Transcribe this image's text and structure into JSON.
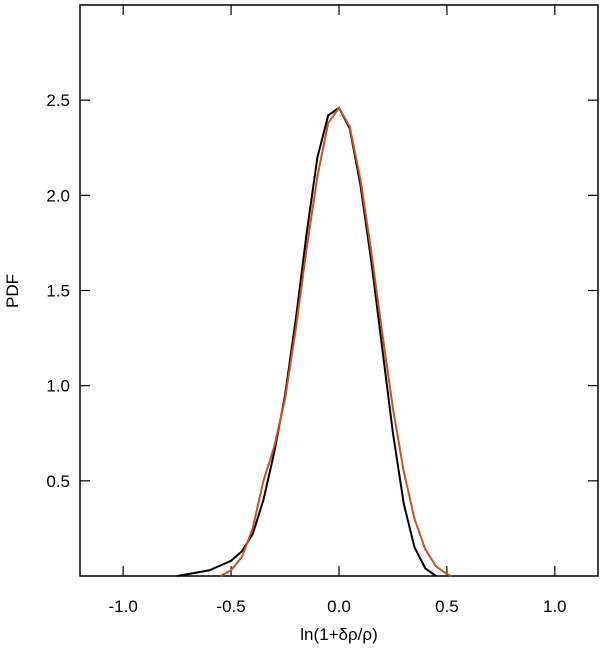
{
  "chart_data": {
    "type": "line",
    "x_label": "ln(1+δρ/ρ)",
    "y_label": "PDF",
    "xlim": [
      -1.2,
      1.2
    ],
    "ylim": [
      0,
      3
    ],
    "xticks": [
      {
        "value": -1.0,
        "label": "-1.0"
      },
      -0.5,
      {
        "value": 0.0,
        "label": "0.0"
      },
      0.5,
      {
        "value": 1.0,
        "label": "1.0"
      }
    ],
    "yticks": [
      0.5,
      {
        "value": 1.0,
        "label": "1.0"
      },
      1.5,
      {
        "value": 2.0,
        "label": "2.0"
      },
      2.5
    ],
    "series": [
      {
        "color": "#000000",
        "x": [
          -0.75,
          -0.7,
          -0.6,
          -0.5,
          -0.45,
          -0.4,
          -0.35,
          -0.3,
          -0.25,
          -0.2,
          -0.15,
          -0.1,
          -0.05,
          0,
          0.05,
          0.1,
          0.15,
          0.2,
          0.25,
          0.3,
          0.35,
          0.4,
          0.45
        ],
        "values": [
          0,
          0.01,
          0.03,
          0.08,
          0.13,
          0.22,
          0.4,
          0.65,
          0.95,
          1.35,
          1.8,
          2.2,
          2.42,
          2.46,
          2.35,
          2.05,
          1.65,
          1.2,
          0.75,
          0.38,
          0.15,
          0.04,
          0
        ]
      },
      {
        "color": "#c8502a",
        "x": [
          -0.55,
          -0.5,
          -0.45,
          -0.4,
          -0.35,
          -0.3,
          -0.25,
          -0.2,
          -0.15,
          -0.1,
          -0.05,
          0,
          0.05,
          0.1,
          0.15,
          0.2,
          0.25,
          0.3,
          0.35,
          0.4,
          0.45,
          0.5,
          0.52
        ],
        "values": [
          0,
          0.03,
          0.1,
          0.25,
          0.5,
          0.68,
          0.93,
          1.3,
          1.72,
          2.1,
          2.38,
          2.46,
          2.36,
          2.08,
          1.7,
          1.28,
          0.88,
          0.55,
          0.3,
          0.14,
          0.05,
          0.01,
          0
        ]
      }
    ]
  }
}
